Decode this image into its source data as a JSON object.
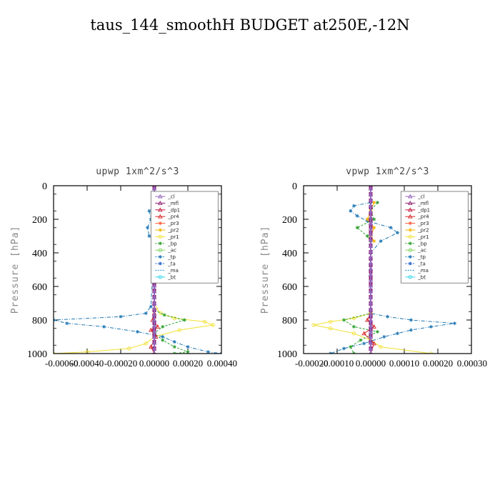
{
  "title": "taus_144_smoothH  BUDGET at250E,-12N",
  "colors": {
    "_cl": "#9467bd",
    "_mfl": "#8e1b6e",
    "_dp1": "#c0183c",
    "_pr4": "#d62728",
    "_pr3": "#ff5a36",
    "_pr2": "#f5b400",
    "_pr1": "#f0e030",
    "_bp": "#2ca02c",
    "_ac": "#7fd35f",
    "_tp": "#1f77b4",
    "_ta": "#2b63c8",
    "_ma": "#1496c8",
    "_bt": "#33d6e8"
  },
  "chart_data": [
    {
      "type": "line",
      "title": "upwp   1xm^2/s^3",
      "ylabel": "Pressure [hPa]",
      "yticks": [
        0,
        200,
        400,
        600,
        800,
        1000
      ],
      "ylim": [
        1000,
        0
      ],
      "xlim": [
        -0.0006,
        0.0004
      ],
      "xticklabels": [
        "-0.00060",
        "-0.00040",
        "-0.00020",
        "0.00000",
        "0.00020",
        "0.00040"
      ],
      "legend": {
        "placement": "top-right",
        "entries": [
          "_cl",
          "_mfl",
          "_dp1",
          "_pr4",
          "_pr3",
          "_pr2",
          "_pr1",
          "_bp",
          "_ac",
          "_tp",
          "_ta",
          "_ma",
          "_bt"
        ]
      },
      "series": [
        {
          "name": "_tp",
          "y": [
            100,
            150,
            200,
            250,
            300,
            330,
            720,
            760,
            780,
            800,
            820,
            840,
            870,
            900,
            930,
            960,
            990,
            1000
          ],
          "x": [
            4e-05,
            -3e-05,
            -2e-05,
            -4e-05,
            -3e-05,
            0.0,
            -2e-05,
            -5e-05,
            -0.0002,
            -0.0006,
            -0.00052,
            -0.0003,
            -0.0001,
            5e-05,
            0.00012,
            0.0002,
            0.00032,
            0.0004
          ]
        },
        {
          "name": "_pr1",
          "y": [
            730,
            760,
            790,
            810,
            830,
            860,
            900,
            940,
            970,
            990,
            1000
          ],
          "x": [
            1e-05,
            4e-05,
            0.00012,
            0.0003,
            0.00035,
            0.00015,
            0.0,
            -5e-05,
            -0.00015,
            -0.0004,
            -0.0006
          ]
        },
        {
          "name": "_pr2",
          "y": [
            100,
            120,
            150,
            200,
            250,
            300,
            330
          ],
          "x": [
            -1e-05,
            1e-05,
            -1e-05,
            1e-05,
            -1e-05,
            1e-05,
            0.0
          ]
        },
        {
          "name": "_bp",
          "y": [
            740,
            770,
            800,
            840,
            880,
            920,
            960,
            990,
            1000
          ],
          "x": [
            0.0,
            6e-05,
            0.00018,
            5e-05,
            0.0,
            5e-05,
            0.00012,
            0.0002,
            0.00012
          ]
        },
        {
          "name": "_pr4",
          "y": [
            760,
            800,
            840,
            860,
            900,
            960,
            1000
          ],
          "x": [
            0.0,
            -1e-05,
            2e-05,
            -2e-05,
            1e-05,
            -2e-05,
            0.0
          ]
        },
        {
          "name": "_mfl",
          "y": [
            0,
            1000
          ],
          "x": [
            0.0,
            0.0
          ]
        },
        {
          "name": "_cl",
          "y": [
            0,
            1000
          ],
          "x": [
            0.0,
            0.0
          ]
        }
      ]
    },
    {
      "type": "line",
      "title": "vpwp   1xm^2/s^3",
      "ylabel": "Pressure [hPa]",
      "yticks": [
        0,
        200,
        400,
        600,
        800,
        1000
      ],
      "ylim": [
        1000,
        0
      ],
      "xlim": [
        -0.0002,
        0.0003
      ],
      "xticklabels": [
        "-0.00020",
        "-0.00010",
        "0.00000",
        "0.00010",
        "0.00020",
        "0.00030"
      ],
      "legend": {
        "placement": "top-right",
        "entries": [
          "_cl",
          "_mfl",
          "_dp1",
          "_pr4",
          "_pr3",
          "_pr2",
          "_pr1",
          "_bp",
          "_ac",
          "_tp",
          "_ta",
          "_ma",
          "_bt"
        ]
      },
      "series": [
        {
          "name": "_tp",
          "y": [
            100,
            120,
            150,
            180,
            210,
            250,
            280,
            330,
            400,
            760,
            780,
            800,
            820,
            840,
            860,
            880,
            900,
            940,
            970,
            1000
          ],
          "x": [
            0.0,
            -5e-05,
            -6e-05,
            -4e-05,
            -1e-05,
            6e-05,
            8e-05,
            3e-05,
            0.0,
            0.0,
            5e-05,
            0.00012,
            0.00025,
            0.00018,
            0.00012,
            8e-05,
            4e-05,
            -2e-05,
            -8e-05,
            -0.00012
          ]
        },
        {
          "name": "_pr1",
          "y": [
            760,
            790,
            810,
            830,
            850,
            880,
            920,
            960,
            1000
          ],
          "x": [
            0.0,
            -5e-05,
            -0.00012,
            -0.00017,
            -0.00012,
            -5e-05,
            0.0,
            3e-05,
            0.00018
          ]
        },
        {
          "name": "_bp",
          "y": [
            100,
            150,
            200,
            250,
            300,
            330,
            760,
            800,
            840,
            870,
            920,
            960,
            1000
          ],
          "x": [
            2e-05,
            0.0,
            1e-05,
            -4e-05,
            -1e-05,
            0.0,
            0.0,
            -8e-05,
            -5e-05,
            2e-05,
            -3e-05,
            -6e-05,
            -5e-05
          ]
        },
        {
          "name": "_pr2",
          "y": [
            100,
            150,
            200,
            250,
            300,
            330
          ],
          "x": [
            1e-05,
            0.0,
            -1e-05,
            1e-05,
            0.0,
            1e-05
          ]
        },
        {
          "name": "_pr4",
          "y": [
            760,
            800,
            840,
            880,
            940,
            1000
          ],
          "x": [
            0.0,
            -1e-05,
            1e-05,
            -2e-05,
            1e-05,
            0.0
          ]
        },
        {
          "name": "_mfl",
          "y": [
            0,
            1000
          ],
          "x": [
            0.0,
            0.0
          ]
        },
        {
          "name": "_cl",
          "y": [
            0,
            1000
          ],
          "x": [
            0.0,
            0.0
          ]
        }
      ]
    }
  ]
}
